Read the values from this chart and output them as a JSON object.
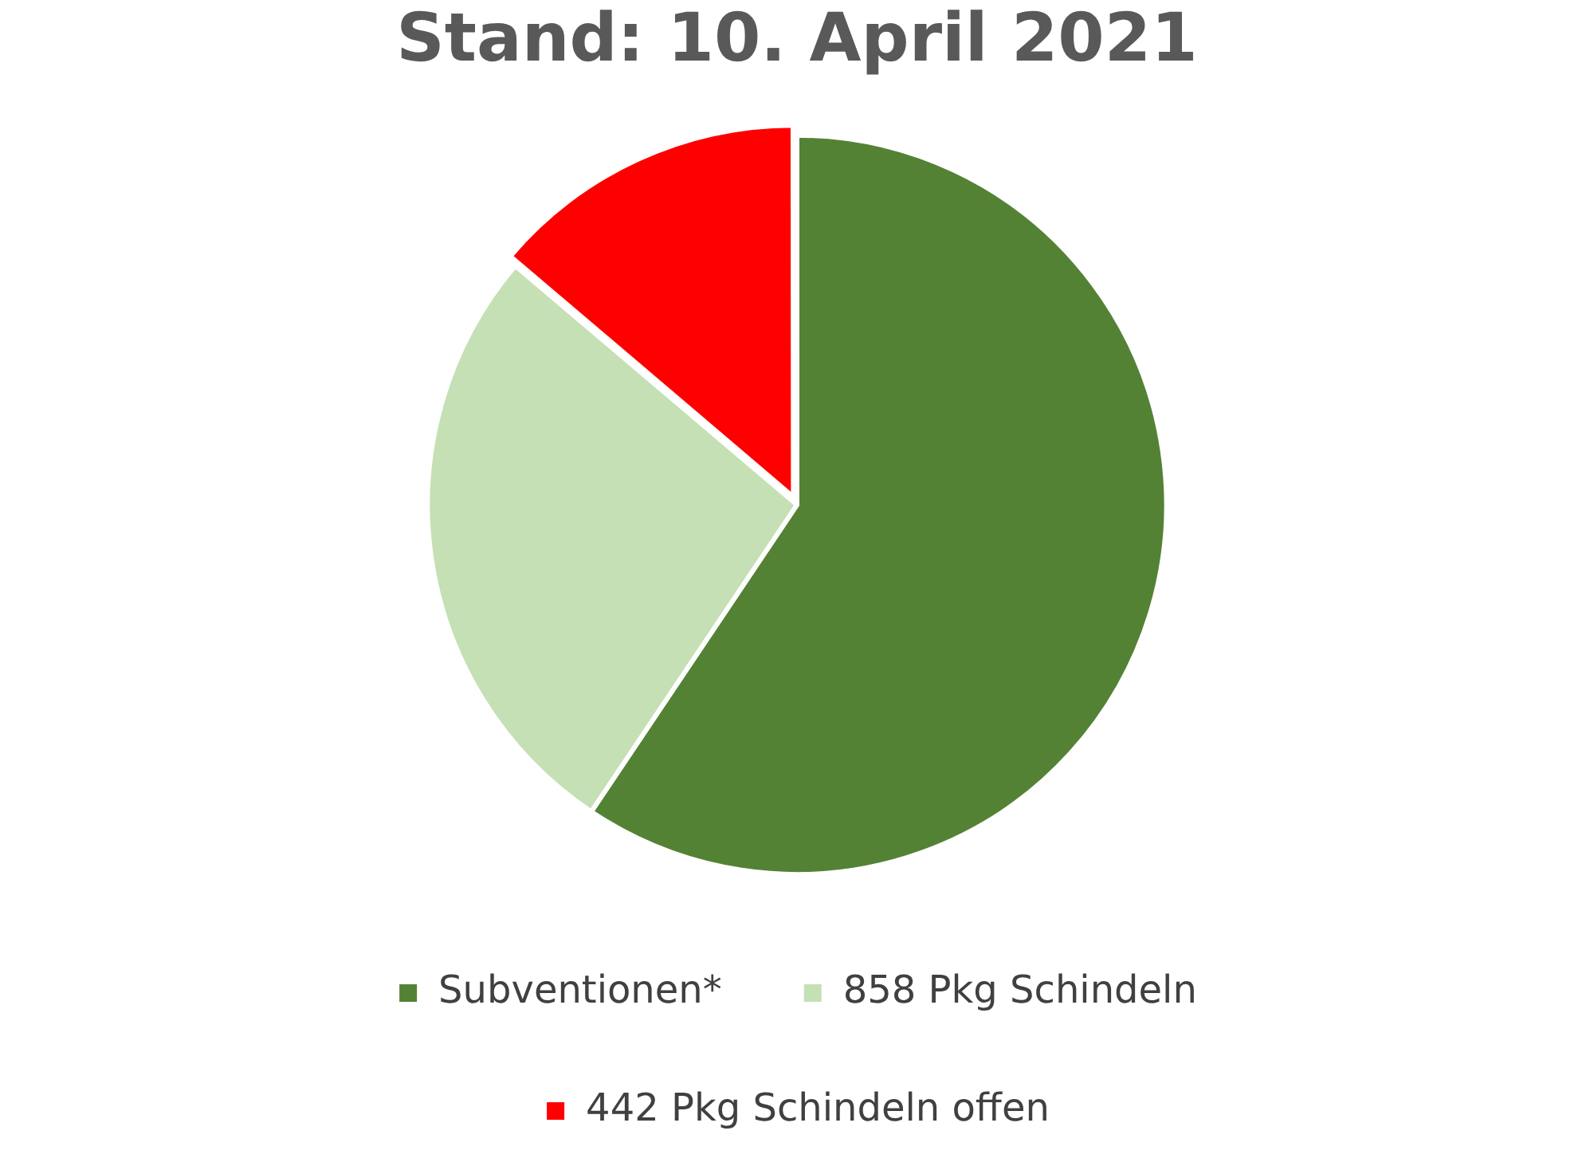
{
  "chart_data": {
    "type": "pie",
    "title": "Stand: 10. April 2021",
    "categories": [
      "Subventionen*",
      "858 Pkg Schindeln",
      "442 Pkg Schindeln offen"
    ],
    "values": [
      59.4,
      26.8,
      13.8
    ],
    "colors": [
      "#548235",
      "#c5e0b4",
      "#ff0000"
    ],
    "legend": "bottom"
  }
}
